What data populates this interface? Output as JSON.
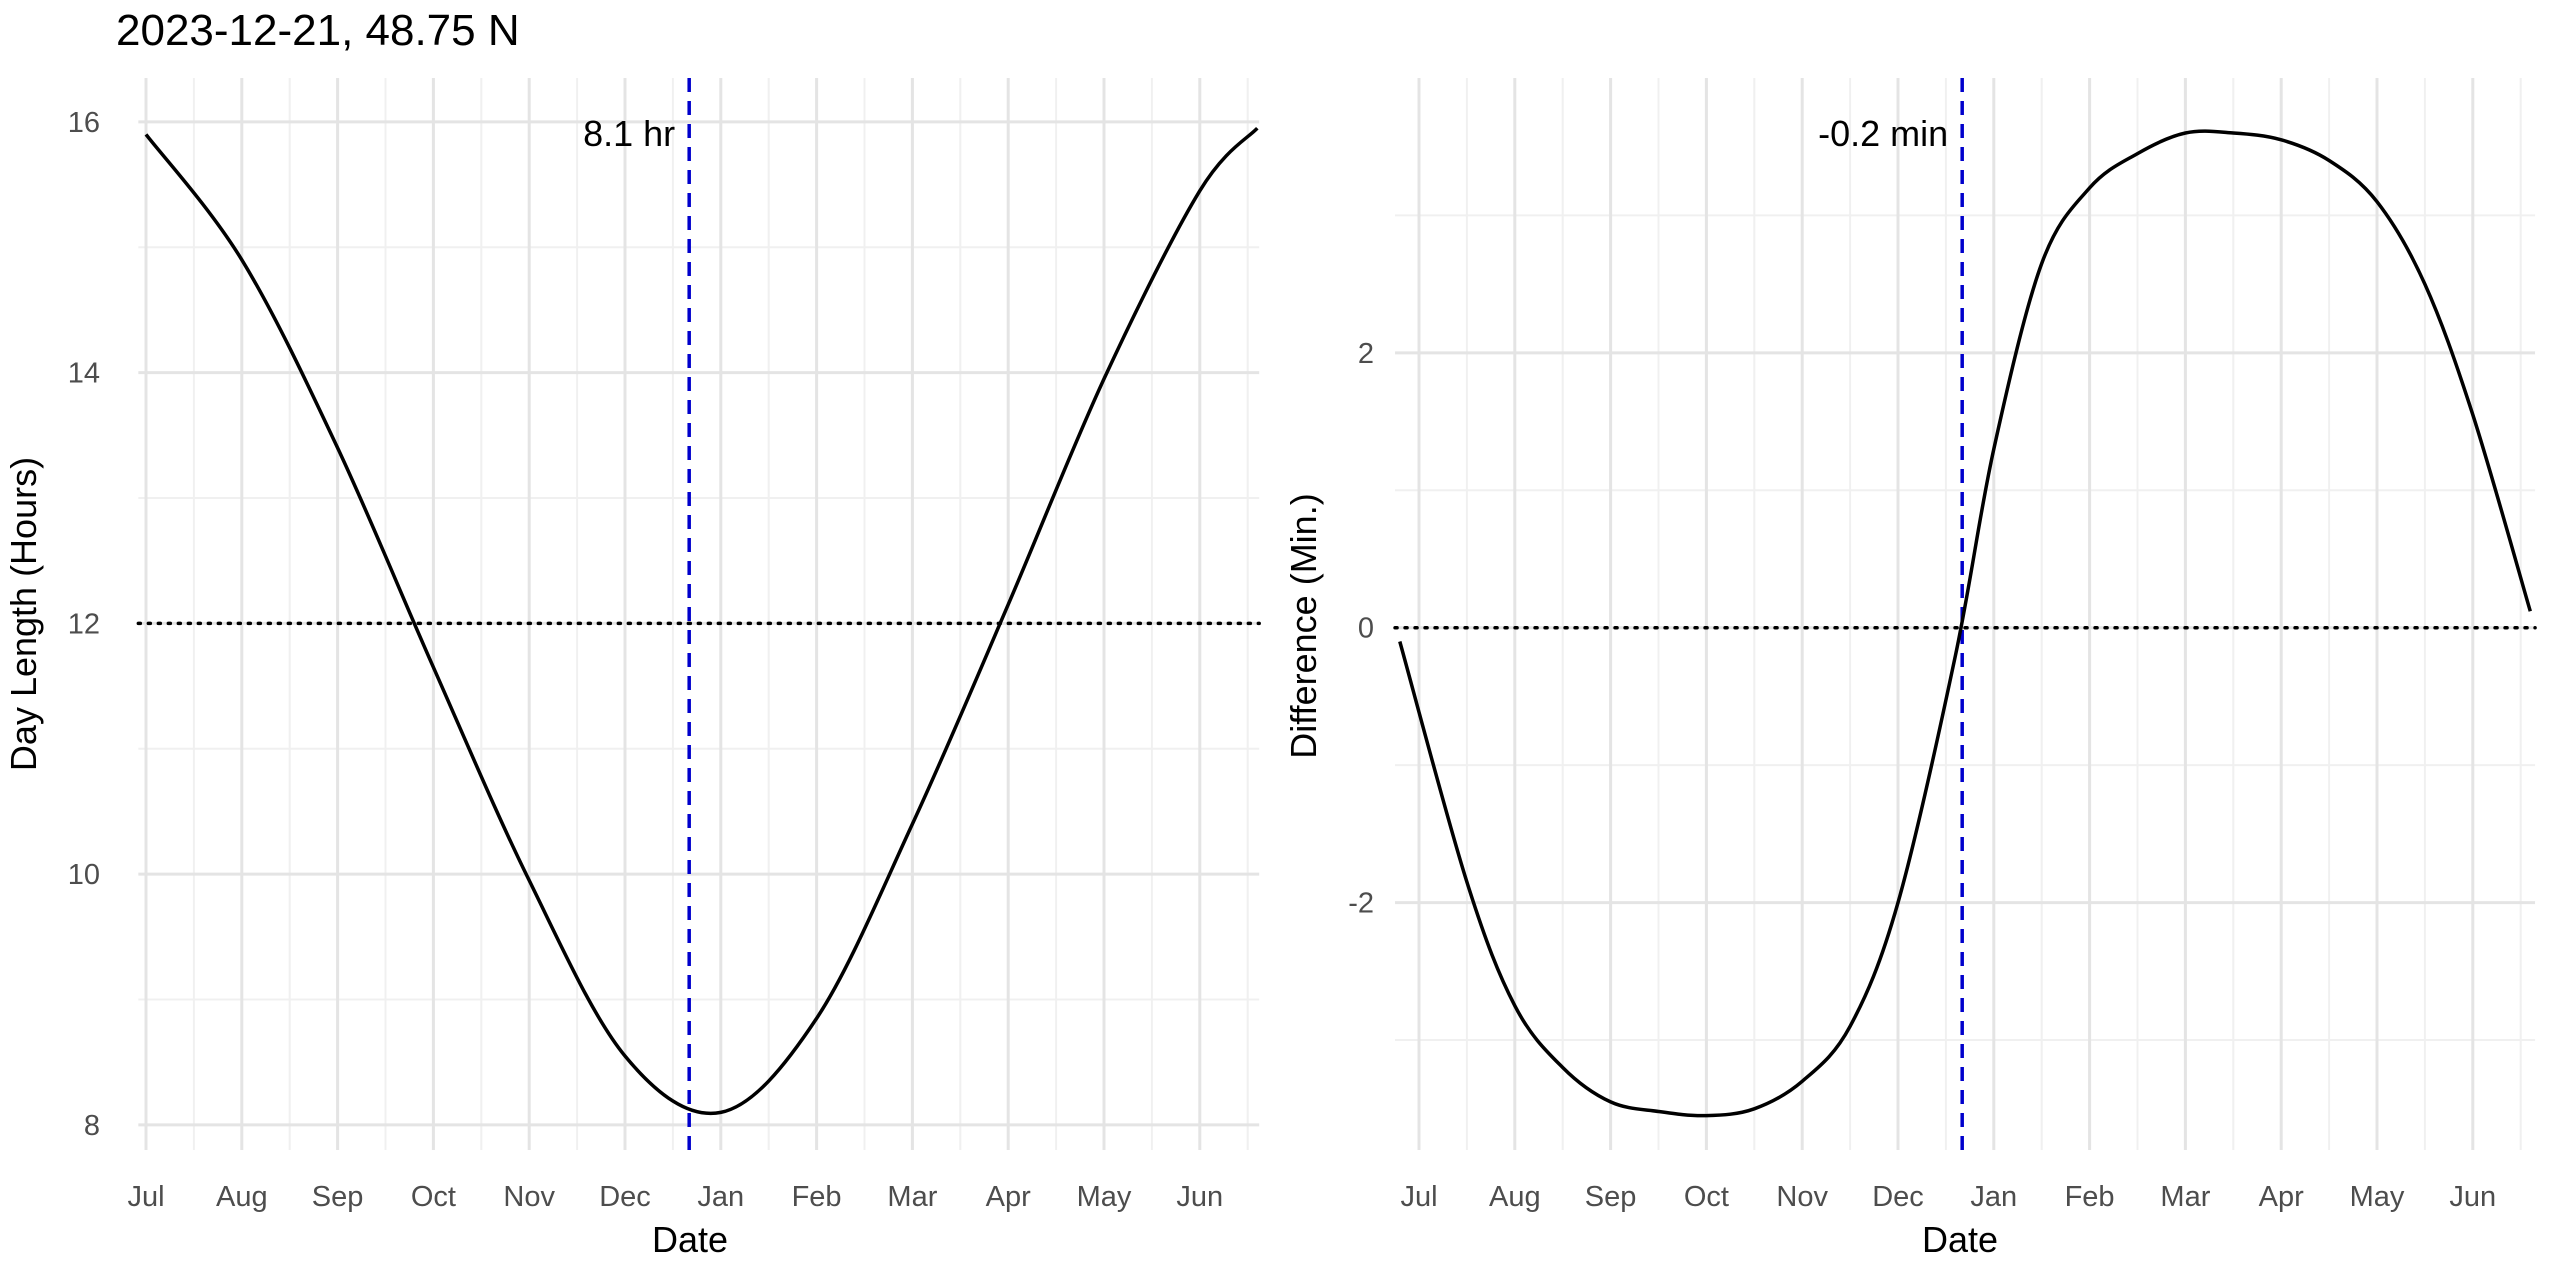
{
  "title": "2023-12-21, 48.75 N",
  "chart_data": [
    {
      "type": "line",
      "xlabel": "Date",
      "ylabel": "Day Length (Hours)",
      "x_tick_labels": [
        "Jul",
        "Aug",
        "Sep",
        "Oct",
        "Nov",
        "Dec",
        "Jan",
        "Feb",
        "Mar",
        "Apr",
        "May",
        "Jun"
      ],
      "y_ticks": [
        8,
        10,
        12,
        14,
        16
      ],
      "ylim": [
        7.8,
        16.35
      ],
      "x_months_range": [
        -0.08,
        11.62
      ],
      "series": [
        {
          "months": [
            0,
            1,
            2,
            3,
            4,
            5,
            6,
            7,
            8,
            9,
            10,
            11,
            11.6
          ],
          "values": [
            15.9,
            14.9,
            13.4,
            11.65,
            9.95,
            8.55,
            8.1,
            8.85,
            10.4,
            12.15,
            13.95,
            15.45,
            15.95
          ]
        }
      ],
      "reference_line": {
        "y": 12,
        "style": "dotted"
      },
      "current_marker": {
        "date": "2023-12-21",
        "months": 5.67,
        "label": "8.1 hr",
        "color": "#0000cc"
      },
      "grid": true
    },
    {
      "type": "line",
      "xlabel": "Date",
      "ylabel": "Difference (Min.)",
      "x_tick_labels": [
        "Jul",
        "Aug",
        "Sep",
        "Oct",
        "Nov",
        "Dec",
        "Jan",
        "Feb",
        "Mar",
        "Apr",
        "May",
        "Jun"
      ],
      "y_ticks": [
        -2,
        0,
        2
      ],
      "y_tick_labels": [
        "-2",
        "0",
        "2"
      ],
      "ylim": [
        -3.8,
        4.0
      ],
      "x_months_range": [
        -0.25,
        11.65
      ],
      "series": [
        {
          "months": [
            -0.2,
            0.5,
            1,
            1.5,
            2,
            2.5,
            3,
            3.5,
            4,
            4.5,
            5,
            5.6,
            6,
            6.5,
            7,
            7.5,
            8,
            8.5,
            9,
            9.5,
            10,
            10.5,
            11,
            11.6
          ],
          "values": [
            -0.1,
            -1.85,
            -2.75,
            -3.2,
            -3.45,
            -3.52,
            -3.55,
            -3.5,
            -3.3,
            -2.9,
            -2.0,
            -0.2,
            1.3,
            2.65,
            3.2,
            3.45,
            3.6,
            3.6,
            3.55,
            3.4,
            3.1,
            2.5,
            1.55,
            0.12
          ]
        }
      ],
      "reference_line": {
        "y": 0,
        "style": "dotted"
      },
      "current_marker": {
        "date": "2023-12-21",
        "months": 5.67,
        "label": "-0.2 min",
        "color": "#0000cc"
      },
      "grid": true
    }
  ]
}
